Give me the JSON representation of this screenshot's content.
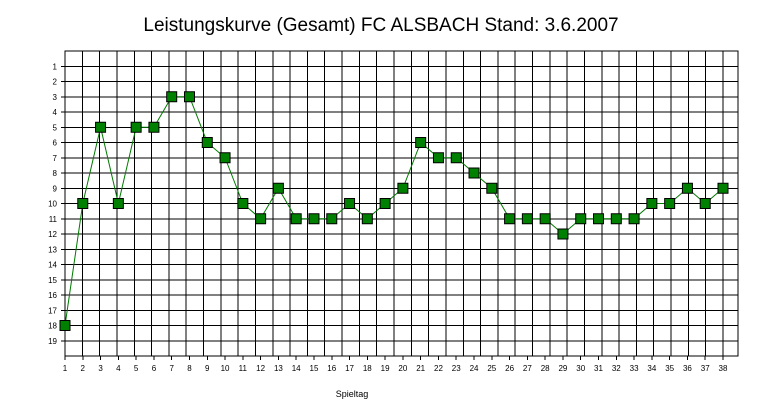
{
  "chart_data": {
    "type": "line",
    "title": "Leistungskurve (Gesamt) FC ALSBACH Stand: 3.6.2007",
    "xlabel": "Spieltag",
    "ylabel": "",
    "x": [
      1,
      2,
      3,
      4,
      5,
      6,
      7,
      8,
      9,
      10,
      11,
      12,
      13,
      14,
      15,
      16,
      17,
      18,
      19,
      20,
      21,
      22,
      23,
      24,
      25,
      26,
      27,
      28,
      29,
      30,
      31,
      32,
      33,
      34,
      35,
      36,
      37,
      38
    ],
    "x_tick_labels": [
      "1",
      "2",
      "3",
      "4",
      "5",
      "6",
      "7",
      "8",
      "9",
      "10",
      "11",
      "12",
      "13",
      "14",
      "15",
      "16",
      "17",
      "18",
      "19",
      "20",
      "21",
      "22",
      "23",
      "24",
      "25",
      "26",
      "27",
      "28",
      "29",
      "30",
      "31",
      "32",
      "33",
      "34",
      "35",
      "36",
      "37",
      "38"
    ],
    "y_tick_labels": [
      "1",
      "2",
      "3",
      "4",
      "5",
      "6",
      "7",
      "8",
      "9",
      "10",
      "11",
      "12",
      "13",
      "14",
      "15",
      "16",
      "17",
      "18",
      "19"
    ],
    "xlim": [
      1,
      38
    ],
    "ylim": [
      0,
      20
    ],
    "y_inverted": true,
    "grid": true,
    "series": [
      {
        "values": [
          18,
          10,
          5,
          10,
          5,
          5,
          3,
          3,
          6,
          7,
          10,
          11,
          9,
          11,
          11,
          11,
          10,
          11,
          10,
          9,
          6,
          7,
          7,
          8,
          9,
          11,
          11,
          11,
          12,
          11,
          11,
          11,
          11,
          10,
          10,
          9,
          10,
          9
        ]
      }
    ],
    "colors": {
      "line": "#007a00",
      "marker_fill": "#008000",
      "marker_stroke": "#000000",
      "grid": "#000000"
    }
  }
}
